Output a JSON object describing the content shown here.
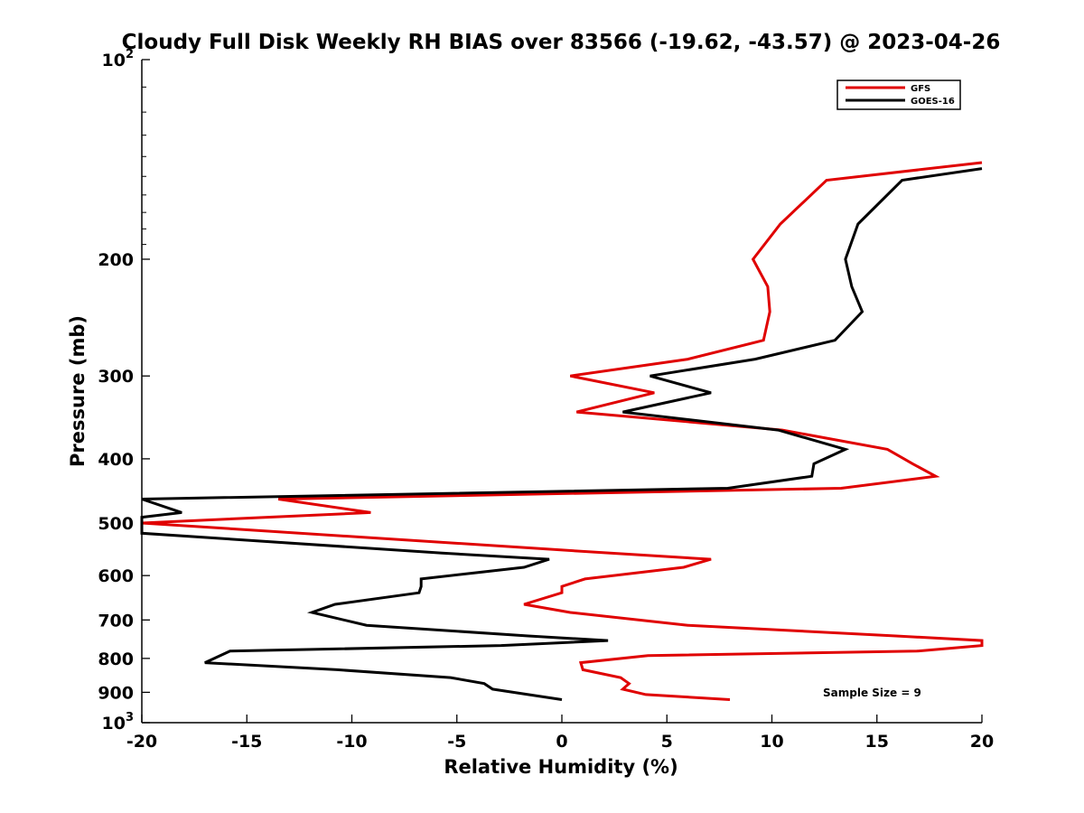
{
  "chart_data": {
    "type": "line",
    "title": "Cloudy Full Disk Weekly RH BIAS over 83566 (-19.62, -43.57) @ 2023-04-26",
    "xlabel": "Relative Humidity (%)",
    "ylabel": "Pressure (mb)",
    "xlim": [
      -20,
      20
    ],
    "ylim": [
      100,
      1000
    ],
    "y_scale": "log",
    "y_reversed": true,
    "x_ticks": [
      {
        "value": -20,
        "label": "-20"
      },
      {
        "value": -15,
        "label": "-15"
      },
      {
        "value": -10,
        "label": "-10"
      },
      {
        "value": -5,
        "label": "-5"
      },
      {
        "value": 0,
        "label": "0"
      },
      {
        "value": 5,
        "label": "5"
      },
      {
        "value": 10,
        "label": "10"
      },
      {
        "value": 15,
        "label": "15"
      },
      {
        "value": 20,
        "label": "20"
      }
    ],
    "y_ticks": [
      {
        "value": 100,
        "base": "10",
        "exp": "2"
      },
      {
        "value": 200,
        "label": "200"
      },
      {
        "value": 300,
        "label": "300"
      },
      {
        "value": 400,
        "label": "400"
      },
      {
        "value": 500,
        "label": "500"
      },
      {
        "value": 600,
        "label": "600"
      },
      {
        "value": 700,
        "label": "700"
      },
      {
        "value": 800,
        "label": "800"
      },
      {
        "value": 900,
        "label": "900"
      },
      {
        "value": 1000,
        "base": "10",
        "exp": "3"
      }
    ],
    "legend_position": "top-right",
    "grid": false,
    "annotation": "Sample Size = 9",
    "series": [
      {
        "name": "GFS",
        "color": "#e00000",
        "points": [
          [
            20,
            143
          ],
          [
            12.6,
            152
          ],
          [
            10.4,
            177
          ],
          [
            9.1,
            200
          ],
          [
            9.8,
            220
          ],
          [
            9.9,
            240
          ],
          [
            9.6,
            265
          ],
          [
            6.0,
            283
          ],
          [
            0.4,
            300
          ],
          [
            4.4,
            318
          ],
          [
            0.7,
            340
          ],
          [
            10.5,
            362
          ],
          [
            15.5,
            387
          ],
          [
            16.7,
            407
          ],
          [
            17.8,
            425
          ],
          [
            13.3,
            443
          ],
          [
            -13.5,
            460
          ],
          [
            -9.1,
            482
          ],
          [
            -20,
            500
          ],
          [
            2.3,
            555
          ],
          [
            7.1,
            567
          ],
          [
            5.8,
            583
          ],
          [
            1.1,
            607
          ],
          [
            0,
            623
          ],
          [
            0,
            637
          ],
          [
            -1.8,
            663
          ],
          [
            0.4,
            682
          ],
          [
            6.0,
            713
          ],
          [
            15.9,
            740
          ],
          [
            20,
            752
          ],
          [
            20,
            765
          ],
          [
            16.9,
            780
          ],
          [
            4.1,
            792
          ],
          [
            0.9,
            812
          ],
          [
            1.0,
            832
          ],
          [
            2.8,
            855
          ],
          [
            3.2,
            873
          ],
          [
            2.9,
            890
          ],
          [
            4.0,
            907
          ],
          [
            8.0,
            923
          ]
        ]
      },
      {
        "name": "GOES-16",
        "color": "#000000",
        "points": [
          [
            20,
            146
          ],
          [
            16.2,
            152
          ],
          [
            14.1,
            177
          ],
          [
            13.5,
            200
          ],
          [
            13.8,
            220
          ],
          [
            14.3,
            240
          ],
          [
            13.0,
            265
          ],
          [
            9.2,
            283
          ],
          [
            4.2,
            300
          ],
          [
            7.1,
            318
          ],
          [
            2.9,
            340
          ],
          [
            10.3,
            362
          ],
          [
            13.5,
            387
          ],
          [
            12.0,
            407
          ],
          [
            11.9,
            425
          ],
          [
            7.9,
            443
          ],
          [
            -20,
            460
          ],
          [
            -18.1,
            482
          ],
          [
            -20,
            490
          ],
          [
            -20,
            518
          ],
          [
            -5.7,
            555
          ],
          [
            -0.6,
            567
          ],
          [
            -1.8,
            583
          ],
          [
            -6.7,
            607
          ],
          [
            -6.7,
            623
          ],
          [
            -6.8,
            637
          ],
          [
            -10.8,
            663
          ],
          [
            -11.9,
            682
          ],
          [
            -9.3,
            713
          ],
          [
            -1.6,
            740
          ],
          [
            2.2,
            752
          ],
          [
            -2.9,
            765
          ],
          [
            -15.8,
            780
          ],
          [
            -17.0,
            812
          ],
          [
            -10.7,
            832
          ],
          [
            -5.3,
            855
          ],
          [
            -3.7,
            873
          ],
          [
            -3.3,
            890
          ],
          [
            0,
            923
          ]
        ]
      }
    ]
  }
}
